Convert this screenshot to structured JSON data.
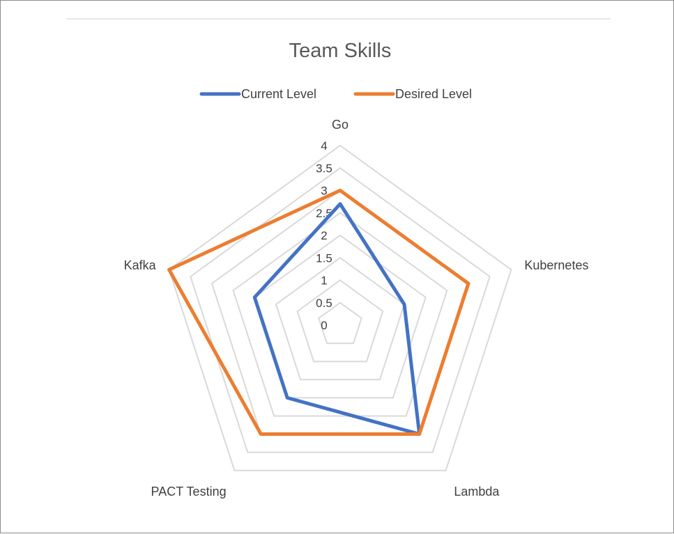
{
  "chart_data": {
    "type": "radar",
    "title": "Team Skills",
    "categories": [
      "Go",
      "Kubernetes",
      "Lambda",
      "PACT Testing",
      "Kafka"
    ],
    "rlim": [
      0,
      4
    ],
    "ticks": [
      "0",
      "0.5",
      "1",
      "1.5",
      "2",
      "2.5",
      "3",
      "3.5",
      "4"
    ],
    "grid": true,
    "legend_position": "top",
    "series": [
      {
        "name": "Current Level",
        "color": "#4472C4",
        "values": [
          2.7,
          1.5,
          3.0,
          2.0,
          2.0
        ]
      },
      {
        "name": "Desired Level",
        "color": "#ED7D31",
        "values": [
          3.0,
          3.0,
          3.0,
          3.0,
          4.0
        ]
      }
    ]
  }
}
